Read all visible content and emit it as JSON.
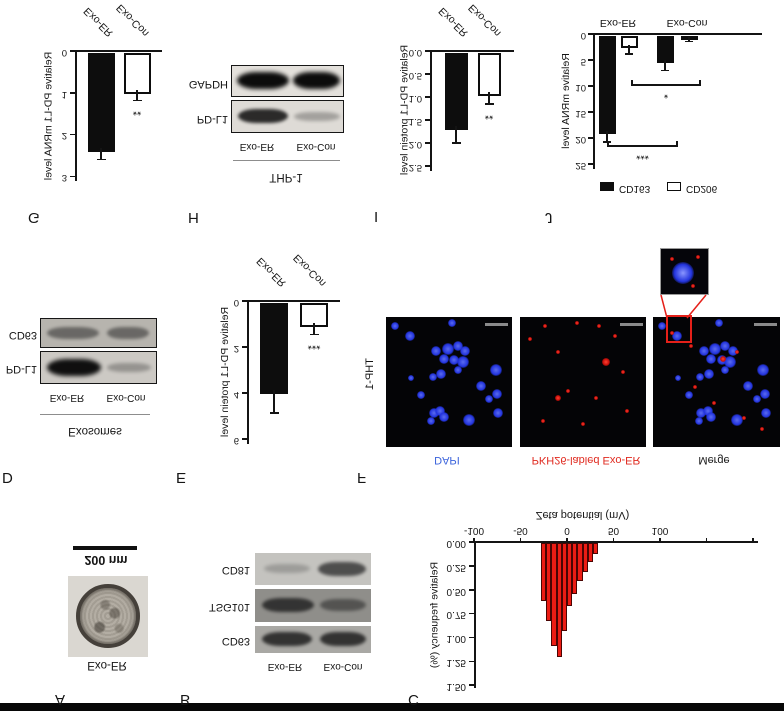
{
  "panels": {
    "A": {
      "letter": "A",
      "sample_label": "Exo-ER",
      "scale_bar_label": "200 nm"
    },
    "B": {
      "letter": "B",
      "lane_labels": [
        "Exo-ER",
        "Exo-Con"
      ],
      "markers": [
        {
          "name": "CD63",
          "bands": [
            "strong",
            "strong"
          ]
        },
        {
          "name": "TSG101",
          "bands": [
            "strong",
            "medium"
          ]
        },
        {
          "name": "CD81",
          "bands": [
            "faint",
            "strong"
          ]
        }
      ]
    },
    "C": {
      "letter": "C"
    },
    "D": {
      "letter": "D",
      "group_label": "Exosomes",
      "lane_labels": [
        "Exo-ER",
        "Exo-Con"
      ],
      "blots": [
        {
          "name": "PD-L1",
          "bands": [
            "verystrong",
            "faint"
          ]
        },
        {
          "name": "CD63",
          "bands": [
            "medium",
            "medium"
          ]
        }
      ]
    },
    "E": {
      "letter": "E"
    },
    "F": {
      "letter": "F",
      "row_label": "THP-1",
      "column_labels": [
        {
          "text": "DAPI",
          "color": "#3c64dc"
        },
        {
          "text": "PKH26-labled Exo-ER",
          "color": "#e02b20"
        },
        {
          "text": "Merge",
          "color": "#1a1a1a"
        }
      ]
    },
    "G": {
      "letter": "G"
    },
    "H": {
      "letter": "H",
      "cell_line_label": "THP-1",
      "lane_labels": [
        "Exo-ER",
        "Exo-Con"
      ],
      "blots": [
        {
          "name": "PD-L1",
          "bands": [
            "strong",
            "faint"
          ]
        },
        {
          "name": "GAPDH",
          "bands": [
            "verystrong",
            "verystrong"
          ]
        }
      ]
    },
    "I": {
      "letter": "I"
    },
    "J": {
      "letter": "J"
    }
  },
  "chart_data": [
    {
      "id": "G",
      "type": "bar",
      "categories": [
        "Exo-ER",
        "Exo-Con"
      ],
      "values": [
        2.4,
        1.0
      ],
      "errors": [
        0.2,
        0.18
      ],
      "bar_colors": [
        "black",
        "white"
      ],
      "significance": {
        "on": "Exo-Con",
        "label": "**"
      },
      "ylabel": "Relative PD-L1 mRNA level",
      "yticks": [
        "0",
        "1",
        "2",
        "3"
      ],
      "ylim": [
        0,
        3
      ]
    },
    {
      "id": "I",
      "type": "bar",
      "categories": [
        "Exo-ER",
        "Exo-Con"
      ],
      "values": [
        1.7,
        0.95
      ],
      "errors": [
        0.3,
        0.2
      ],
      "bar_colors": [
        "black",
        "white"
      ],
      "significance": {
        "on": "Exo-Con",
        "label": "**"
      },
      "ylabel": "Relative PD-L1 protein level",
      "yticks": [
        "0.0",
        "0.5",
        "1.0",
        "1.5",
        "2.0",
        "2.5"
      ],
      "ylim": [
        0,
        2.5
      ]
    },
    {
      "id": "E",
      "type": "bar",
      "categories": [
        "Exo-ER",
        "Exo-Con"
      ],
      "values": [
        4.0,
        1.1
      ],
      "errors": [
        0.85,
        0.35
      ],
      "bar_colors": [
        "black",
        "white"
      ],
      "significance": {
        "on": "Exo-Con",
        "label": "***"
      },
      "ylabel": "Relative PD-L1 protein level",
      "yticks": [
        "0",
        "2",
        "4",
        "6"
      ],
      "ylim": [
        0,
        6
      ]
    },
    {
      "id": "J",
      "type": "grouped_bar",
      "groups": [
        "Exo-ER",
        "Exo-Con"
      ],
      "series": [
        {
          "name": "CD163",
          "color": "black",
          "values": [
            19,
            5.3
          ],
          "errors": [
            1.7,
            1.7
          ]
        },
        {
          "name": "CD206",
          "color": "white",
          "values": [
            2.5,
            1.0
          ],
          "errors": [
            1.3,
            0.4
          ]
        }
      ],
      "ylabel": "Relative mRNA level",
      "yticks": [
        "0",
        "5",
        "10",
        "15",
        "20",
        "25"
      ],
      "ylim": [
        0,
        25
      ],
      "brackets": [
        {
          "label": "***",
          "y": 21.5
        },
        {
          "label": "*",
          "y": 9.8
        }
      ],
      "legend": [
        "CD163",
        "CD206"
      ]
    },
    {
      "id": "C",
      "type": "histogram",
      "xlabel": "Zeta potential (mV)",
      "ylabel": "Relative frequency (%)",
      "xticks": [
        "-100",
        "-50",
        "0",
        "50",
        "100"
      ],
      "yticks": [
        "0.00",
        "0.25",
        "0.50",
        "0.75",
        "1.00",
        "1.25",
        "1.50"
      ],
      "bin_start_mv": -28,
      "bin_width_mv": 5.6,
      "values": [
        0.61,
        0.82,
        1.08,
        1.2,
        0.92,
        0.66,
        0.53,
        0.4,
        0.3,
        0.2,
        0.12
      ],
      "bar_color": "#ec1c14",
      "ylim": [
        0,
        1.5
      ],
      "xlim": [
        -100,
        200
      ]
    }
  ],
  "microscopy": {
    "nuclei": [
      [
        0.19,
        0.85,
        5
      ],
      [
        0.4,
        0.74,
        5
      ],
      [
        0.49,
        0.75,
        6
      ],
      [
        0.57,
        0.78,
        5
      ],
      [
        0.63,
        0.74,
        5
      ],
      [
        0.54,
        0.67,
        5
      ],
      [
        0.61,
        0.65,
        6
      ],
      [
        0.46,
        0.68,
        5
      ],
      [
        0.44,
        0.56,
        5
      ],
      [
        0.37,
        0.54,
        4
      ],
      [
        0.57,
        0.59,
        4
      ],
      [
        0.87,
        0.59,
        6
      ],
      [
        0.75,
        0.47,
        5
      ],
      [
        0.88,
        0.41,
        5
      ],
      [
        0.82,
        0.37,
        4
      ],
      [
        0.38,
        0.26,
        5
      ],
      [
        0.43,
        0.28,
        5
      ],
      [
        0.46,
        0.23,
        5
      ],
      [
        0.36,
        0.2,
        4
      ],
      [
        0.66,
        0.21,
        6
      ],
      [
        0.89,
        0.26,
        5
      ],
      [
        0.28,
        0.4,
        4
      ],
      [
        0.2,
        0.53,
        3
      ],
      [
        0.07,
        0.93,
        4
      ],
      [
        0.52,
        0.95,
        4
      ]
    ],
    "pkh26_dots": [
      [
        0.2,
        0.93,
        2
      ],
      [
        0.45,
        0.95,
        2
      ],
      [
        0.63,
        0.93,
        2
      ],
      [
        0.08,
        0.83,
        2
      ],
      [
        0.3,
        0.73,
        2
      ],
      [
        0.68,
        0.65,
        4
      ],
      [
        0.82,
        0.58,
        2
      ],
      [
        0.38,
        0.43,
        2
      ],
      [
        0.3,
        0.38,
        3
      ],
      [
        0.6,
        0.38,
        2
      ],
      [
        0.85,
        0.28,
        2
      ],
      [
        0.5,
        0.18,
        2
      ],
      [
        0.18,
        0.2,
        2
      ],
      [
        0.75,
        0.85,
        2
      ]
    ],
    "merge_dots": [
      [
        0.55,
        0.68,
        3
      ],
      [
        0.66,
        0.73,
        2
      ],
      [
        0.33,
        0.46,
        2
      ],
      [
        0.72,
        0.22,
        2
      ],
      [
        0.15,
        0.88,
        2
      ],
      [
        0.48,
        0.34,
        2
      ],
      [
        0.86,
        0.14,
        2
      ],
      [
        0.3,
        0.78,
        2
      ]
    ],
    "inset_dots": [
      [
        0.78,
        0.82,
        2
      ],
      [
        0.68,
        0.18,
        2
      ],
      [
        0.24,
        0.78,
        2
      ]
    ]
  },
  "colors": {
    "histogram_bar": "#ec1c14",
    "nuclei_blue": "#2a3bdc",
    "red_marker": "#e52019",
    "axis": "#141414",
    "dapi_label": "#3c64dc",
    "pkh26_label": "#e02b20"
  }
}
